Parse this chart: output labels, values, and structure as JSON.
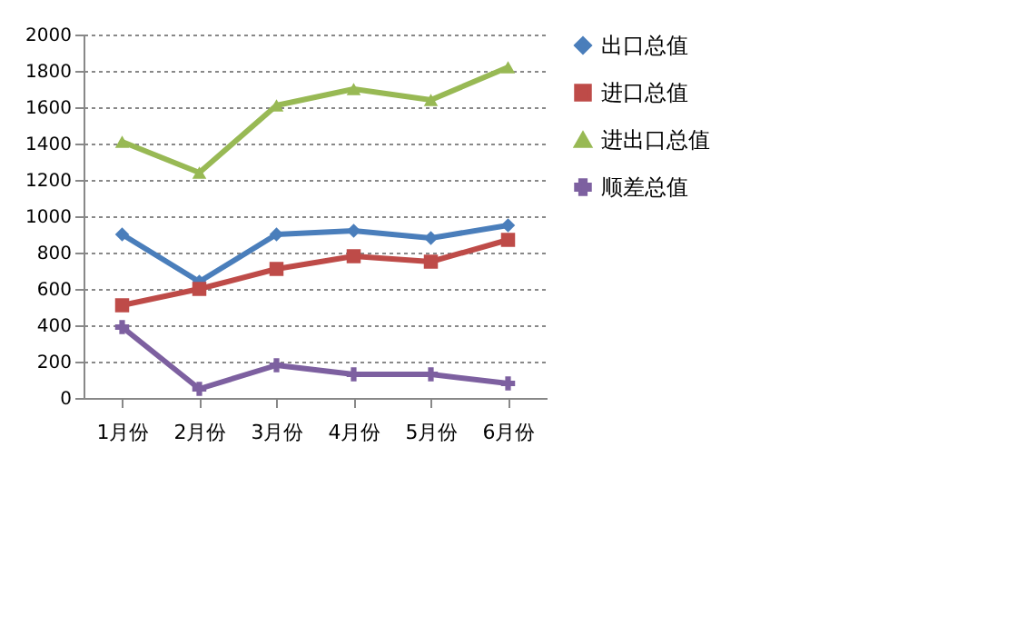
{
  "chart_data": {
    "type": "line",
    "categories": [
      "1月份",
      "2月份",
      "3月份",
      "4月份",
      "5月份",
      "6月份"
    ],
    "series": [
      {
        "name": "出口总值",
        "color": "#4a7ebb",
        "marker": "diamond",
        "values": [
          900,
          640,
          900,
          920,
          880,
          950
        ]
      },
      {
        "name": "进口总值",
        "color": "#be4b48",
        "marker": "square",
        "values": [
          510,
          600,
          710,
          780,
          750,
          870
        ]
      },
      {
        "name": "进出口总值",
        "color": "#98b954",
        "marker": "triangle",
        "values": [
          1410,
          1240,
          1610,
          1700,
          1640,
          1820
        ]
      },
      {
        "name": "顺差总值",
        "color": "#7d60a0",
        "marker": "cross",
        "values": [
          390,
          50,
          180,
          130,
          130,
          80
        ]
      }
    ],
    "ylim": [
      0,
      2000
    ],
    "yticks": [
      0,
      200,
      400,
      600,
      800,
      1000,
      1200,
      1400,
      1600,
      1800,
      2000
    ],
    "grid": "y",
    "legend": "right",
    "line_style": "solid"
  }
}
